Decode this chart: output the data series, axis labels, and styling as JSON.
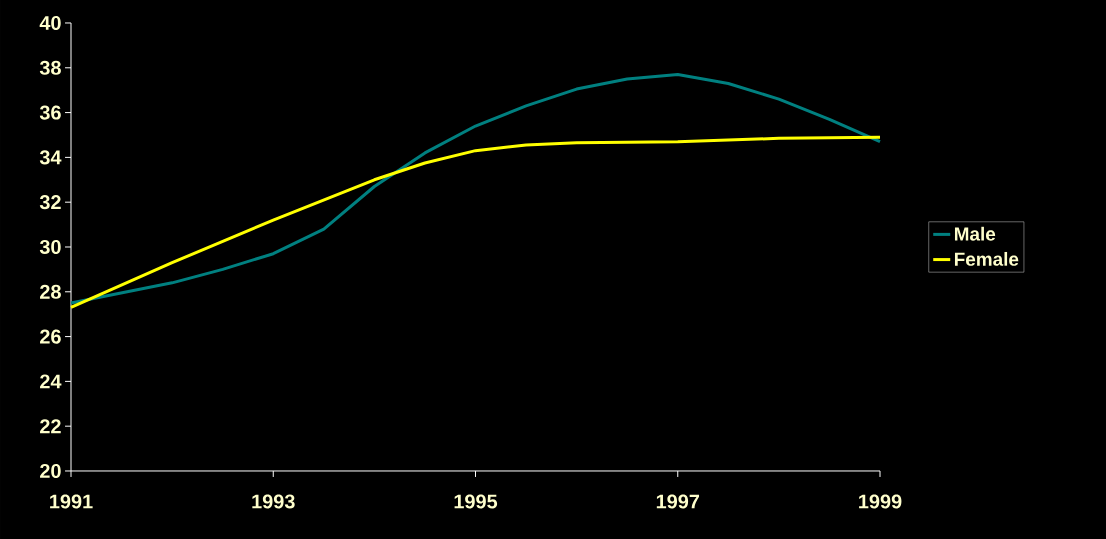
{
  "chart_data": {
    "type": "line",
    "x": [
      1991,
      1992,
      1992.5,
      1993,
      1993.5,
      1994,
      1994.5,
      1995,
      1995.5,
      1996,
      1996.5,
      1997,
      1997.5,
      1998,
      1998.5,
      1999
    ],
    "series": [
      {
        "name": "Male",
        "color": "#008080",
        "values": [
          27.5,
          28.4,
          29.0,
          29.7,
          30.8,
          32.7,
          34.2,
          35.4,
          36.3,
          37.05,
          37.5,
          37.7,
          37.3,
          36.6,
          35.7,
          34.7
        ]
      },
      {
        "name": "Female",
        "color": "#ffff00",
        "x": [
          1991,
          1992,
          1993,
          1994,
          1994.5,
          1995,
          1995.5,
          1996,
          1997,
          1998,
          1999
        ],
        "values": [
          27.3,
          29.3,
          31.2,
          33.0,
          33.75,
          34.3,
          34.55,
          34.65,
          34.7,
          34.85,
          34.9
        ]
      }
    ],
    "xlim": [
      1991,
      1999
    ],
    "xticks": [
      1991,
      1993,
      1995,
      1997,
      1999
    ],
    "ylim": [
      20,
      40
    ],
    "yticks": [
      20,
      22,
      24,
      26,
      28,
      30,
      32,
      34,
      36,
      38,
      40
    ],
    "grid": false,
    "legend": "right",
    "marker": "none",
    "line_style": "solid"
  }
}
